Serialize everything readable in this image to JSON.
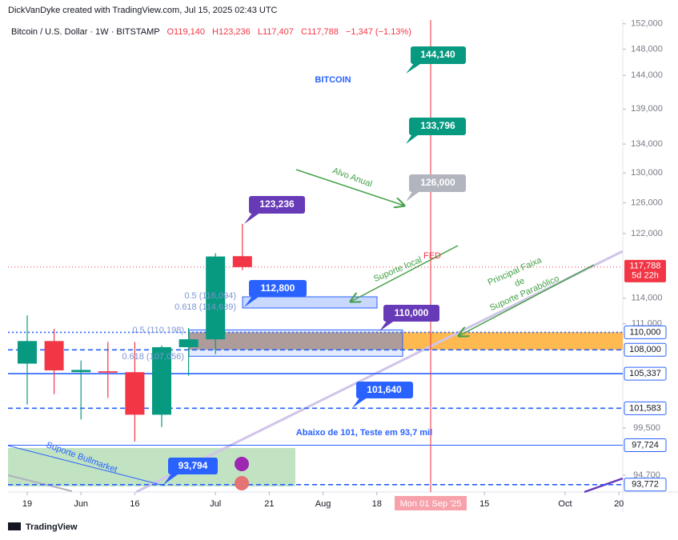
{
  "credit": "DickVanDyke created with TradingView.com, Jul 15, 2025 02:43 UTC",
  "watermark": "TradingView",
  "chart_data": {
    "type": "candlestick",
    "title": "Bitcoin / U.S. Dollar · 1W · BITSTAMP",
    "ohlc_text": [
      "O119,140",
      "H123,236",
      "L117,407",
      "C117,788",
      "−1,347 (−1.13%)"
    ],
    "x": [
      0,
      1,
      2,
      3,
      4,
      5,
      6,
      7,
      8
    ],
    "open": [
      106450,
      109000,
      105500,
      105600,
      105500,
      100900,
      108300,
      109200,
      119140
    ],
    "high": [
      111980,
      110400,
      106800,
      108900,
      108900,
      108500,
      110500,
      119500,
      123236
    ],
    "low": [
      102000,
      103100,
      100400,
      102700,
      98100,
      99600,
      105100,
      107500,
      117407
    ],
    "close": [
      109000,
      105700,
      105750,
      105450,
      100900,
      108300,
      109200,
      119100,
      117788
    ],
    "up_color": "#089981",
    "down_color": "#f23645",
    "log_scale": true,
    "grid": false,
    "ylim": [
      93050,
      152600
    ],
    "yticks": [
      {
        "value": 152000,
        "label": "152,000"
      },
      {
        "value": 148000,
        "label": "148,000"
      },
      {
        "value": 144000,
        "label": "144,000"
      },
      {
        "value": 139000,
        "label": "139,000"
      },
      {
        "value": 134000,
        "label": "134,000"
      },
      {
        "value": 130000,
        "label": "130,000"
      },
      {
        "value": 126000,
        "label": "126,000"
      },
      {
        "value": 122000,
        "label": "122,000"
      },
      {
        "value": 114000,
        "label": "114,000"
      },
      {
        "value": 111000,
        "label": "111,000"
      },
      {
        "value": 99500,
        "label": "99,500"
      },
      {
        "value": 94700,
        "label": "94,700"
      }
    ],
    "xlim": [
      -0.714,
      22.143
    ],
    "xticks": [
      {
        "value": 0,
        "label": "19"
      },
      {
        "value": 2,
        "label": "Jun"
      },
      {
        "value": 4,
        "label": "16"
      },
      {
        "value": 7,
        "label": "Jul"
      },
      {
        "value": 9,
        "label": "21"
      },
      {
        "value": 11,
        "label": "Aug"
      },
      {
        "value": 13,
        "label": "18"
      },
      {
        "value": 17,
        "label": "15"
      },
      {
        "value": 20,
        "label": "Oct"
      },
      {
        "value": 22,
        "label": "20"
      }
    ],
    "cursor_x": {
      "value": 15,
      "label": "Mon 01 Sep '25"
    },
    "last_price": {
      "value": 117788,
      "label": "117,788",
      "countdown": "5d 22h"
    },
    "price_lines": [
      {
        "value": 110000,
        "label": "110,000",
        "style": "dotted"
      },
      {
        "value": 108000,
        "label": "108,000",
        "style": "dashed"
      },
      {
        "value": 105337,
        "label": "105,337",
        "style": "solid"
      },
      {
        "value": 101583,
        "label": "101,583",
        "style": "dashed"
      },
      {
        "value": 97724,
        "label": "97,724",
        "style": "thin"
      },
      {
        "value": 93772,
        "label": "93,772",
        "style": "dashed"
      }
    ],
    "annotations": {
      "headline": "BITCOIN",
      "target_1": "144,140",
      "target_2": "133,796",
      "target_3": "126,000",
      "annual_target": "Alvo Anual",
      "high_label": "123,236",
      "fib_upper_level": "112,800",
      "fib_upper_05": "0.5 (116,094)",
      "fib_upper_0618": "0.618 (114,639)",
      "local_support": "Suporte local",
      "fed": "FED",
      "support_110": "110,000",
      "fib_lower_05": "0.5 (110,198)",
      "fib_lower_0618": "0.618 (107,056)",
      "parabolic_1": "Principal Faixa",
      "parabolic_2": "de",
      "parabolic_3": "Suporte Parabólico",
      "level_101": "101,640",
      "scenario": "Abaixo de 101, Teste em 93,7 mil",
      "bullmarket_support": "Suporte Bullmarket",
      "level_93": "93,794"
    }
  }
}
